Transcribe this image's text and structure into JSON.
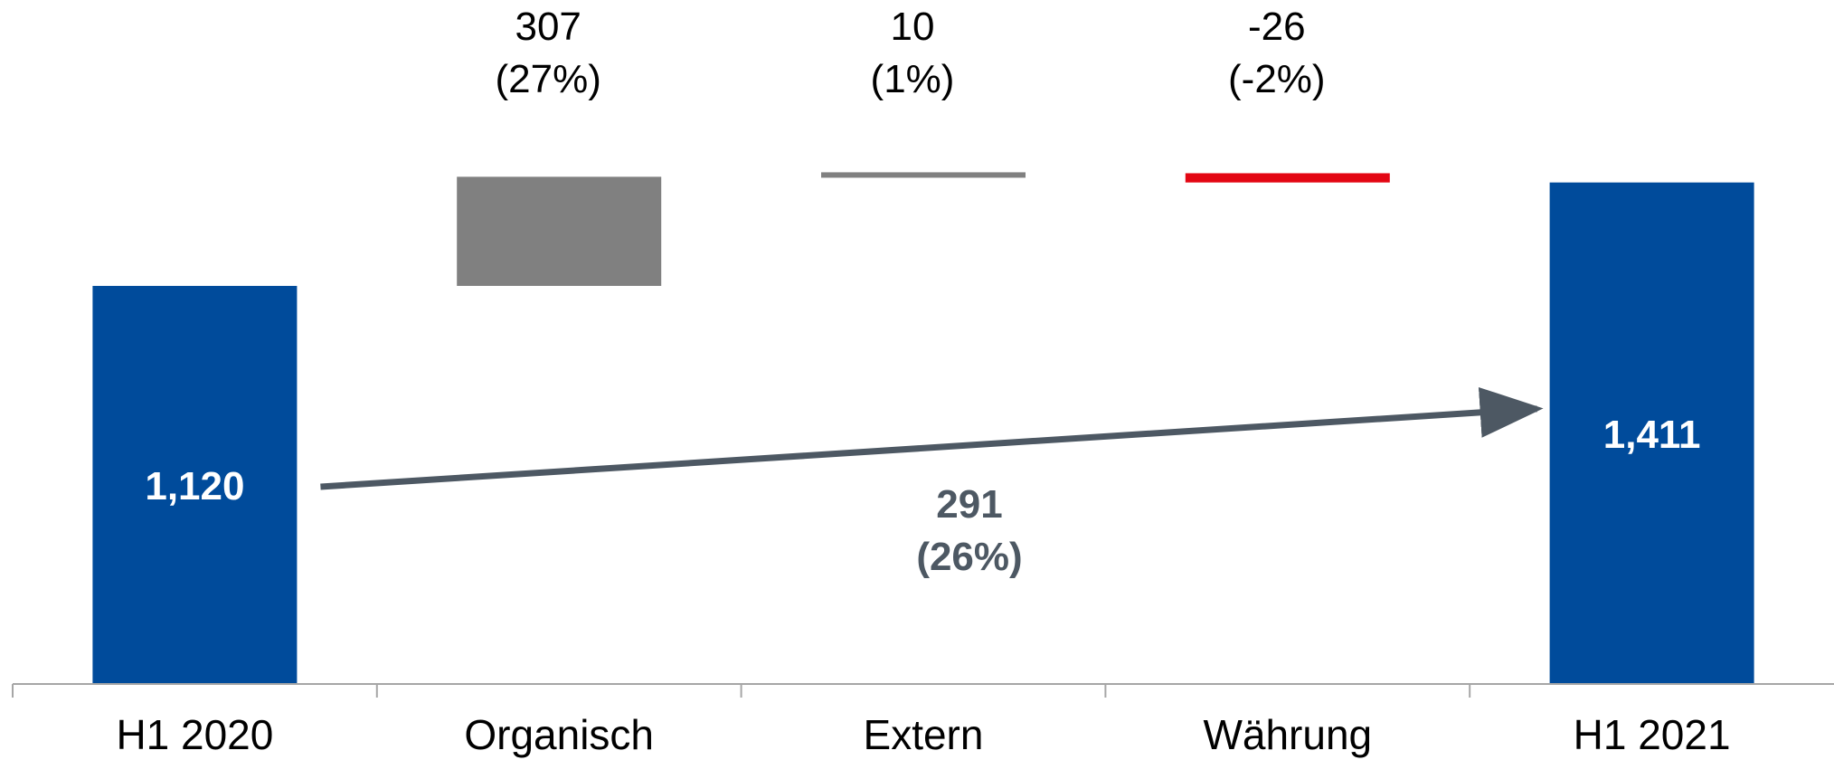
{
  "chart_data": {
    "type": "waterfall",
    "categories": [
      "H1 2020",
      "Organisch",
      "Extern",
      "Währung",
      "H1 2021"
    ],
    "steps": [
      {
        "category": "H1 2020",
        "kind": "total",
        "value": 1120,
        "label": "1,120"
      },
      {
        "category": "Organisch",
        "kind": "delta",
        "value": 307,
        "label": "307",
        "pct_label": "(27%)"
      },
      {
        "category": "Extern",
        "kind": "delta",
        "value": 10,
        "label": "10",
        "pct_label": "(1%)"
      },
      {
        "category": "Währung",
        "kind": "delta",
        "value": -26,
        "label": "-26",
        "pct_label": "(-2%)"
      },
      {
        "category": "H1 2021",
        "kind": "total",
        "value": 1411,
        "label": "1,411"
      }
    ],
    "change": {
      "value": 291,
      "label": "291",
      "pct_label": "(26%)"
    },
    "ylim": [
      0,
      1600
    ],
    "colors": {
      "total": "#004b9b",
      "positive": "#808080",
      "negative": "#e30613",
      "arrow": "#4d5863",
      "axis": "#a6a6a6",
      "text": "#000000",
      "total_text": "#ffffff"
    }
  }
}
